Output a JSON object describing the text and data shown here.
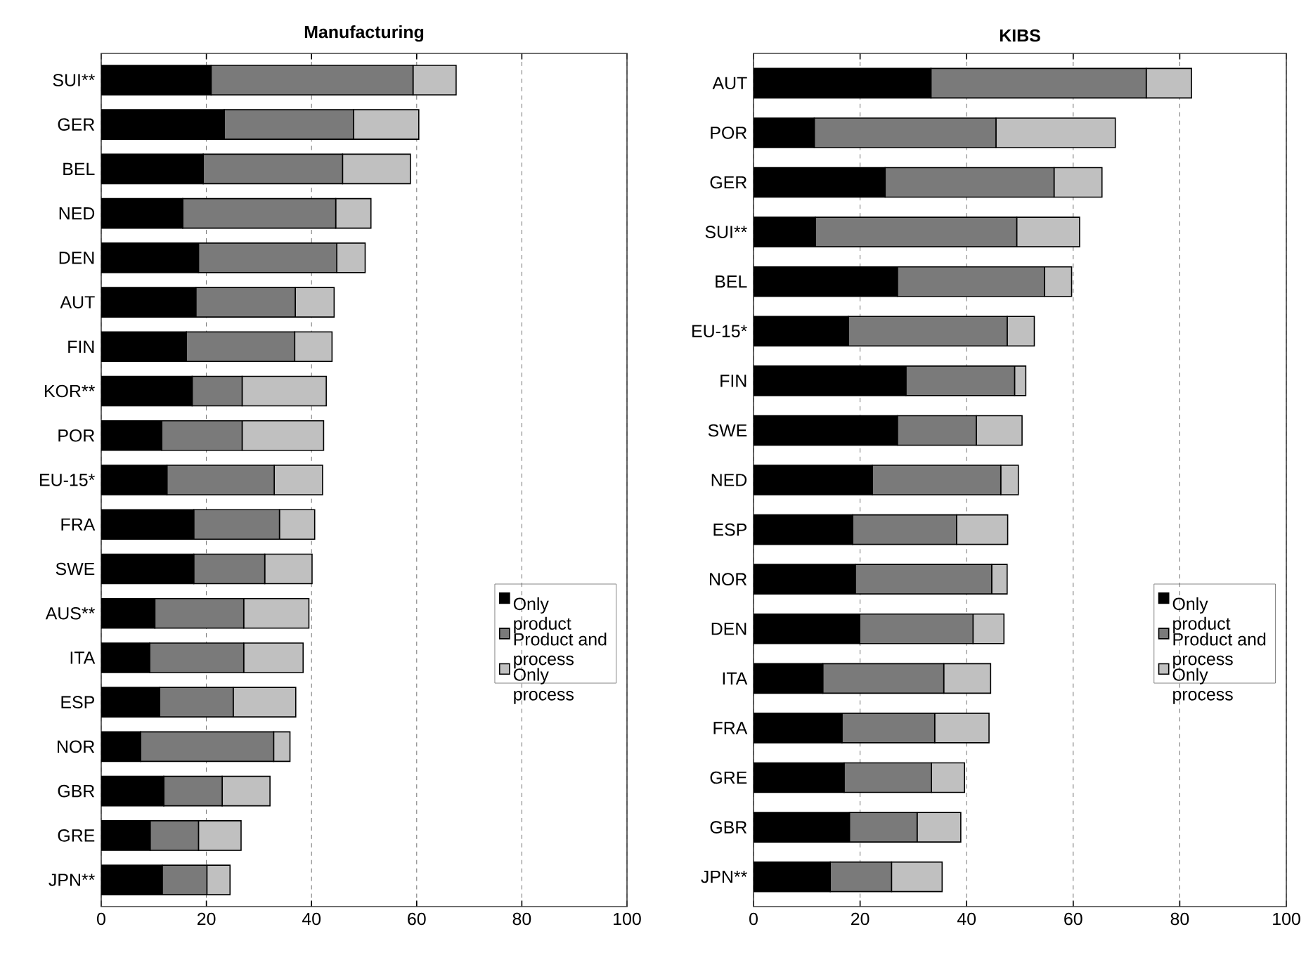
{
  "chart_data": [
    {
      "type": "bar",
      "orientation": "horizontal",
      "stacked": true,
      "title": "Manufacturing",
      "categories": [
        "SUI**",
        "GER",
        "BEL",
        "NED",
        "DEN",
        "AUT",
        "FIN",
        "KOR**",
        "POR",
        "EU-15*",
        "FRA",
        "SWE",
        "AUS**",
        "ITA",
        "ESP",
        "NOR",
        "GBR",
        "GRE",
        "JPN**"
      ],
      "series": [
        {
          "name": "Only product",
          "color": "#000000",
          "values": [
            20.9,
            23.4,
            19.4,
            15.5,
            18.5,
            18.0,
            16.2,
            17.3,
            11.5,
            12.5,
            17.6,
            17.6,
            10.2,
            9.2,
            11.1,
            7.5,
            11.9,
            9.3,
            11.6
          ]
        },
        {
          "name": "Product and process",
          "color": "#7a7a7a",
          "values": [
            38.4,
            24.6,
            26.5,
            29.1,
            26.3,
            18.9,
            20.6,
            9.5,
            15.3,
            20.4,
            16.3,
            13.5,
            16.9,
            17.9,
            14.0,
            25.3,
            11.1,
            9.2,
            8.5
          ]
        },
        {
          "name": "Only process",
          "color": "#c0c0c0",
          "values": [
            8.2,
            12.4,
            12.9,
            6.7,
            5.4,
            7.4,
            7.1,
            16.0,
            15.5,
            9.2,
            6.7,
            9.0,
            12.4,
            11.3,
            11.9,
            3.1,
            9.1,
            8.1,
            4.4
          ]
        }
      ],
      "xlim": [
        0,
        100
      ],
      "xticks": [
        0,
        20,
        40,
        60,
        80,
        100
      ],
      "grid": "x",
      "legend": "right"
    },
    {
      "type": "bar",
      "orientation": "horizontal",
      "stacked": true,
      "title": "KIBS",
      "categories": [
        "AUT",
        "POR",
        "GER",
        "SUI**",
        "BEL",
        "EU-15*",
        "FIN",
        "SWE",
        "NED",
        "ESP",
        "NOR",
        "DEN",
        "ITA",
        "FRA",
        "GRE",
        "GBR",
        "JPN**"
      ],
      "series": [
        {
          "name": "Only product",
          "color": "#000000",
          "values": [
            33.3,
            11.4,
            24.7,
            11.6,
            27.0,
            17.8,
            28.6,
            27.0,
            22.3,
            18.6,
            19.1,
            19.9,
            13.0,
            16.6,
            17.0,
            18.0,
            14.4
          ]
        },
        {
          "name": "Product and process",
          "color": "#7a7a7a",
          "values": [
            40.4,
            34.1,
            31.7,
            37.8,
            27.6,
            29.8,
            20.4,
            14.8,
            24.1,
            19.5,
            25.6,
            21.3,
            22.7,
            17.4,
            16.4,
            12.7,
            11.5
          ]
        },
        {
          "name": "Only process",
          "color": "#c0c0c0",
          "values": [
            8.5,
            22.4,
            9.0,
            11.8,
            5.1,
            5.1,
            2.1,
            8.6,
            3.3,
            9.6,
            2.9,
            5.8,
            8.8,
            10.2,
            6.2,
            8.2,
            9.5
          ]
        }
      ],
      "xlim": [
        0,
        100
      ],
      "xticks": [
        0,
        20,
        40,
        60,
        80,
        100
      ],
      "grid": "x",
      "legend": "right"
    }
  ]
}
